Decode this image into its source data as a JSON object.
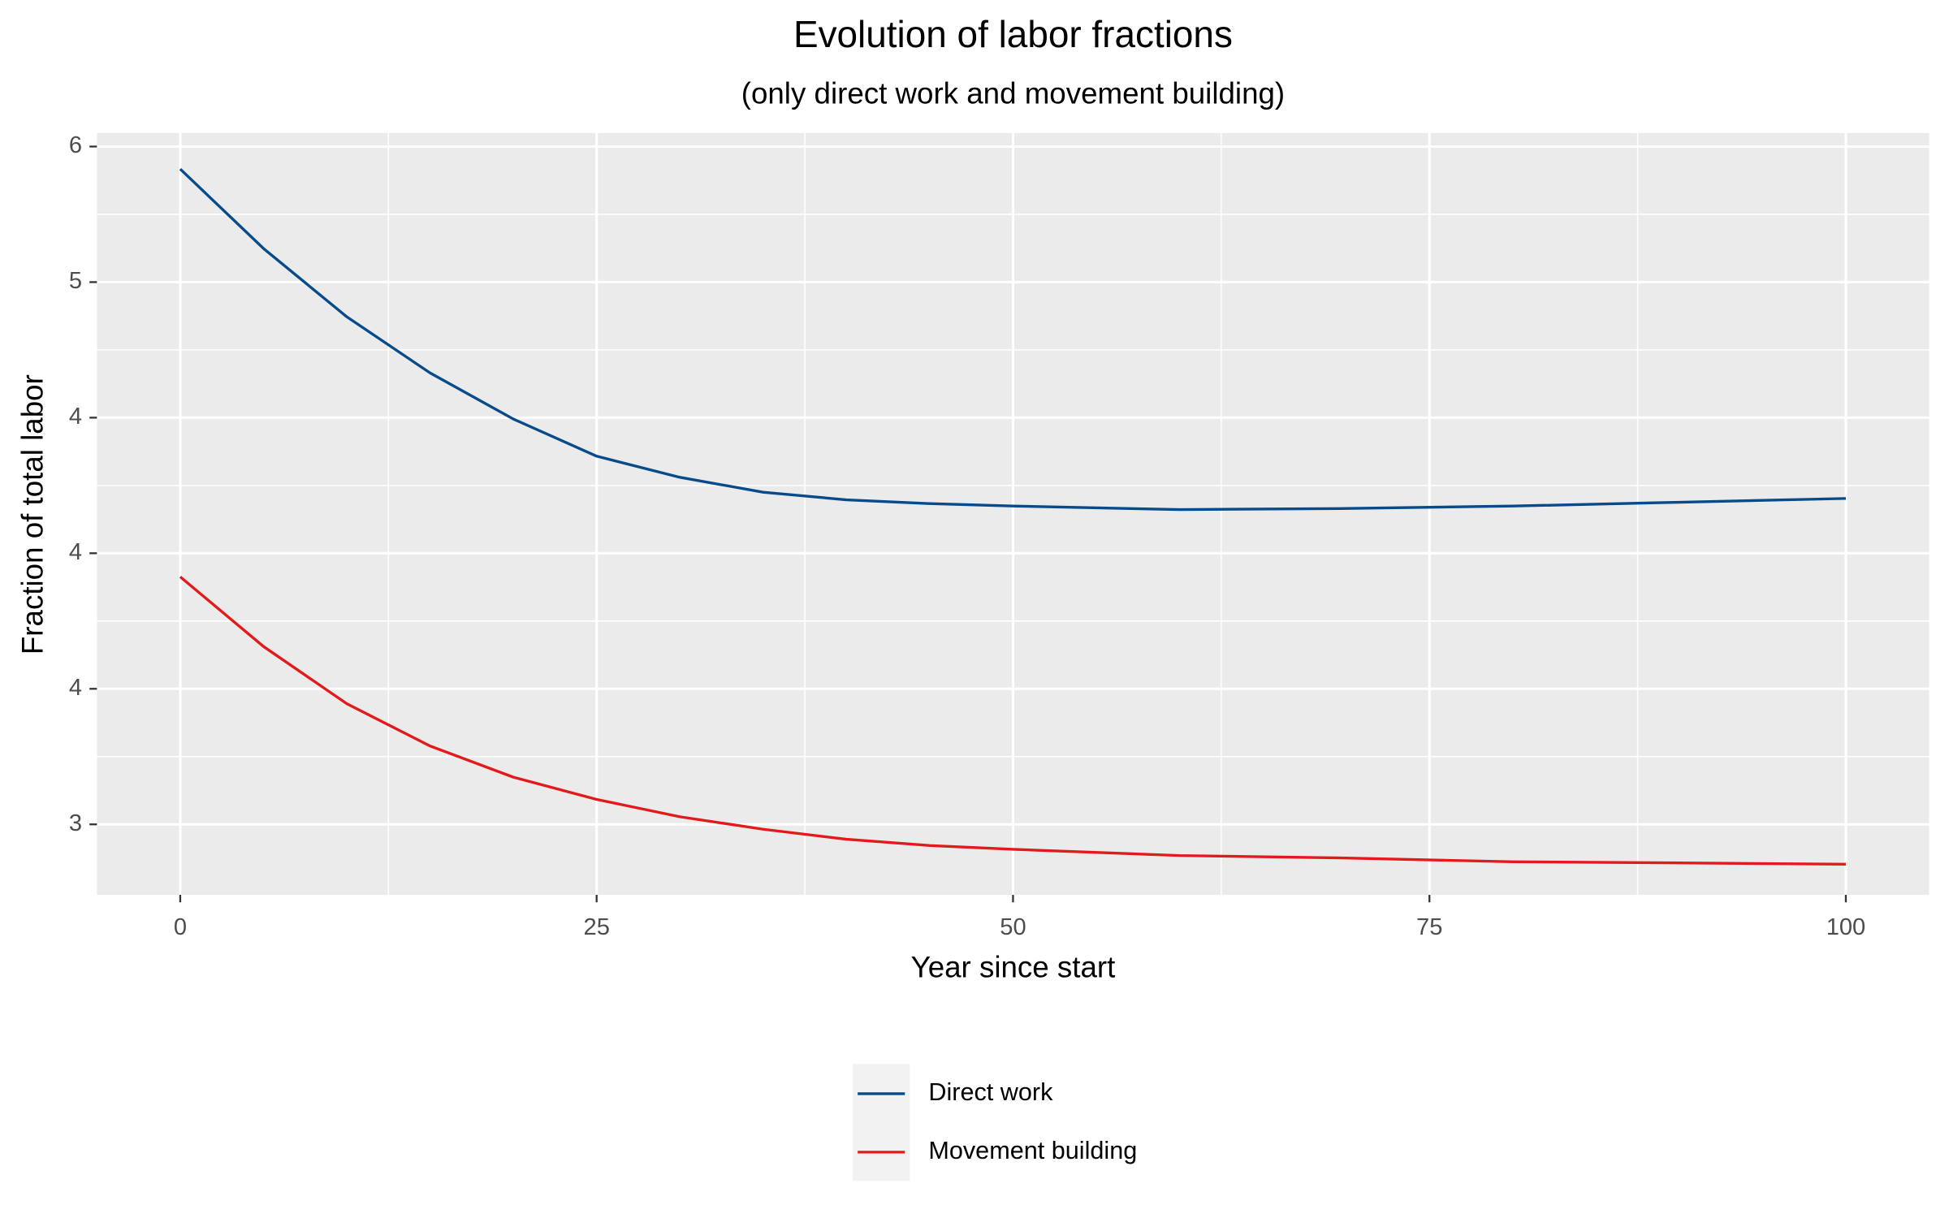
{
  "chart_data": {
    "type": "line",
    "title": "Evolution of labor fractions",
    "subtitle": "(only direct work and movement building)",
    "x_label": "Year since start",
    "y_label": "Fraction of total labor",
    "x": [
      0,
      5,
      10,
      15,
      20,
      25,
      30,
      35,
      40,
      45,
      50,
      60,
      70,
      80,
      90,
      100
    ],
    "series": [
      {
        "name": "Direct work",
        "color": "#084b8a",
        "values": [
          5.417,
          5.124,
          4.872,
          4.665,
          4.495,
          4.358,
          4.28,
          4.225,
          4.197,
          4.183,
          4.174,
          4.161,
          4.165,
          4.174,
          4.188,
          4.202
        ]
      },
      {
        "name": "Movement building",
        "color": "#e31a1c",
        "values": [
          3.913,
          3.656,
          3.445,
          3.289,
          3.174,
          3.092,
          3.028,
          2.982,
          2.945,
          2.922,
          2.908,
          2.885,
          2.876,
          2.862,
          2.858,
          2.853
        ]
      }
    ],
    "xlim": [
      -5,
      105
    ],
    "xticks": [
      0,
      25,
      50,
      75,
      100
    ],
    "ylim": [
      2.74,
      5.55
    ],
    "yticks": [
      3,
      {
        "value": 3.5,
        "label": "4"
      },
      4,
      {
        "value": 4.5,
        "label": "4"
      },
      5,
      {
        "value": 5.5,
        "label": "6"
      }
    ],
    "grid": true,
    "legend_position": "bottom"
  }
}
